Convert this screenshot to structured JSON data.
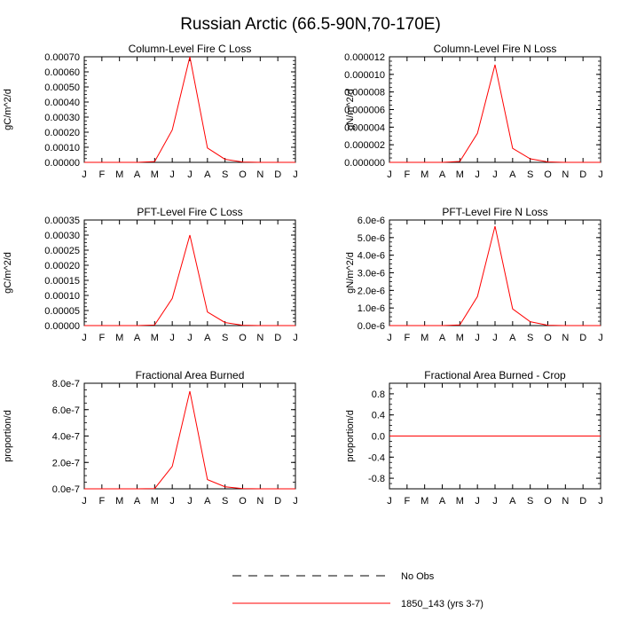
{
  "figure": {
    "title": "Russian Arctic (66.5-90N,70-170E)"
  },
  "chart_data": [
    {
      "type": "line",
      "title": "Column-Level Fire C Loss",
      "ylabel": "gC/m^2/d",
      "categories": [
        "J",
        "F",
        "M",
        "A",
        "M",
        "J",
        "J",
        "A",
        "S",
        "O",
        "N",
        "D",
        "J"
      ],
      "ylim": [
        0,
        0.0007
      ],
      "yticks": [
        0,
        0.0001,
        0.0002,
        0.0003,
        0.0004,
        0.0005,
        0.0006,
        0.0007
      ],
      "ytick_labels": [
        "0.00000",
        "0.00010",
        "0.00020",
        "0.00030",
        "0.00040",
        "0.00050",
        "0.00060",
        "0.00070"
      ],
      "series": [
        {
          "name": "1850_143 (yrs 3-7)",
          "color": "#ff0000",
          "values": [
            0,
            0,
            0,
            0,
            5e-06,
            0.000215,
            0.0007,
            9.5e-05,
            2e-05,
            2e-06,
            0,
            0,
            0
          ]
        }
      ]
    },
    {
      "type": "line",
      "title": "Column-Level Fire N Loss",
      "ylabel": "gN/m^2/d",
      "categories": [
        "J",
        "F",
        "M",
        "A",
        "M",
        "J",
        "J",
        "A",
        "S",
        "O",
        "N",
        "D",
        "J"
      ],
      "ylim": [
        0,
        1.2e-05
      ],
      "yticks": [
        0,
        2e-06,
        4e-06,
        6e-06,
        8e-06,
        1e-05,
        1.2e-05
      ],
      "ytick_labels": [
        "0.000000",
        "0.000002",
        "0.000004",
        "0.000006",
        "0.000008",
        "0.000010",
        "0.000012"
      ],
      "series": [
        {
          "name": "1850_143 (yrs 3-7)",
          "color": "#ff0000",
          "values": [
            0,
            0,
            0,
            0,
            1e-07,
            3.3e-06,
            1.11e-05,
            1.6e-06,
            4e-07,
            5e-08,
            0,
            0,
            0
          ]
        }
      ]
    },
    {
      "type": "line",
      "title": "PFT-Level Fire C Loss",
      "ylabel": "gC/m^2/d",
      "categories": [
        "J",
        "F",
        "M",
        "A",
        "M",
        "J",
        "J",
        "A",
        "S",
        "O",
        "N",
        "D",
        "J"
      ],
      "ylim": [
        0,
        0.00035
      ],
      "yticks": [
        0,
        5e-05,
        0.0001,
        0.00015,
        0.0002,
        0.00025,
        0.0003,
        0.00035
      ],
      "ytick_labels": [
        "0.00000",
        "0.00005",
        "0.00010",
        "0.00015",
        "0.00020",
        "0.00025",
        "0.00030",
        "0.00035"
      ],
      "series": [
        {
          "name": "1850_143 (yrs 3-7)",
          "color": "#ff0000",
          "values": [
            0,
            0,
            0,
            0,
            2e-06,
            9e-05,
            0.0003,
            4.5e-05,
            1e-05,
            1e-06,
            0,
            0,
            0
          ]
        }
      ]
    },
    {
      "type": "line",
      "title": "PFT-Level Fire N Loss",
      "ylabel": "gN/m^2/d",
      "categories": [
        "J",
        "F",
        "M",
        "A",
        "M",
        "J",
        "J",
        "A",
        "S",
        "O",
        "N",
        "D",
        "J"
      ],
      "ylim": [
        0,
        6e-06
      ],
      "yticks": [
        0,
        1e-06,
        2e-06,
        3e-06,
        4e-06,
        5e-06,
        6e-06
      ],
      "ytick_labels": [
        "0.0e-6",
        "1.0e-6",
        "2.0e-6",
        "3.0e-6",
        "4.0e-6",
        "5.0e-6",
        "6.0e-6"
      ],
      "series": [
        {
          "name": "1850_143 (yrs 3-7)",
          "color": "#ff0000",
          "values": [
            0,
            0,
            0,
            0,
            4e-08,
            1.65e-06,
            5.65e-06,
            9.5e-07,
            2.2e-07,
            2e-08,
            0,
            0,
            0
          ]
        }
      ]
    },
    {
      "type": "line",
      "title": "Fractional Area Burned",
      "ylabel": "proportion/d",
      "categories": [
        "J",
        "F",
        "M",
        "A",
        "M",
        "J",
        "J",
        "A",
        "S",
        "O",
        "N",
        "D",
        "J"
      ],
      "ylim": [
        0,
        8e-07
      ],
      "yticks": [
        0,
        2e-07,
        4e-07,
        6e-07,
        8e-07
      ],
      "ytick_labels": [
        "0.0e-7",
        "2.0e-7",
        "4.0e-7",
        "6.0e-7",
        "8.0e-7"
      ],
      "series": [
        {
          "name": "1850_143 (yrs 3-7)",
          "color": "#ff0000",
          "values": [
            0,
            0,
            0,
            0,
            2e-09,
            1.7e-07,
            7.4e-07,
            7e-08,
            1.5e-08,
            2e-09,
            0,
            0,
            0
          ]
        }
      ]
    },
    {
      "type": "line",
      "title": "Fractional Area Burned - Crop",
      "ylabel": "proportion/d",
      "categories": [
        "J",
        "F",
        "M",
        "A",
        "M",
        "J",
        "J",
        "A",
        "S",
        "O",
        "N",
        "D",
        "J"
      ],
      "ylim": [
        -1.0,
        1.0
      ],
      "yticks": [
        -0.8,
        -0.4,
        0.0,
        0.4,
        0.8
      ],
      "ytick_labels": [
        "-0.8",
        "-0.4",
        "0.0",
        "0.4",
        "0.8"
      ],
      "series": [
        {
          "name": "1850_143 (yrs 3-7)",
          "color": "#ff0000",
          "values": [
            0,
            0,
            0,
            0,
            0,
            0,
            0,
            0,
            0,
            0,
            0,
            0,
            0
          ]
        }
      ]
    }
  ],
  "legend": {
    "entries": [
      {
        "label": "No Obs",
        "style": "dashed",
        "color": "#000000"
      },
      {
        "label": "1850_143 (yrs 3-7)",
        "style": "solid",
        "color": "#ff0000"
      }
    ]
  }
}
